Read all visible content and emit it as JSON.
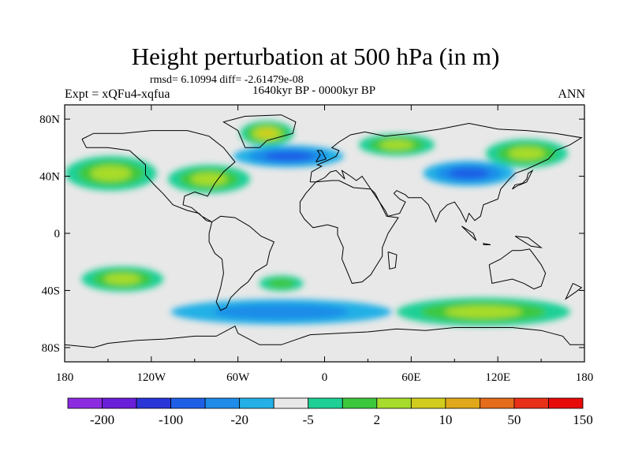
{
  "header": {
    "title": "Height perturbation at 500 hPa (in m)",
    "stats": "rmsd= 6.10994 diff= -2.61479e-08",
    "period": "1640kyr BP - 0000kyr BP",
    "experiment": "Expt = xQFu4-xqfua",
    "season": "ANN"
  },
  "map": {
    "lon_labels": [
      "180",
      "120W",
      "60W",
      "0",
      "60E",
      "120E",
      "180"
    ],
    "lat_labels": [
      "80N",
      "40N",
      "0",
      "40S",
      "80S"
    ],
    "background_color": "#e8e8e8",
    "coast_color": "#000000"
  },
  "colorbar": {
    "colors": [
      "#8c2be0",
      "#6a1fd8",
      "#2a35d8",
      "#1e5fe6",
      "#1e8ce8",
      "#24b0e6",
      "#e8e8e8",
      "#1ed096",
      "#3cc83c",
      "#a8dc2c",
      "#d2cc1e",
      "#e0a81a",
      "#e46c1a",
      "#e83018",
      "#e80a0a"
    ],
    "labels": [
      "-200",
      "-100",
      "-20",
      "-5",
      "2",
      "10",
      "50",
      "150"
    ]
  },
  "anomaly_fields": [
    {
      "region": "North Pacific",
      "lon": -148,
      "lat": 42,
      "sign": "positive",
      "level": 3
    },
    {
      "region": "North America",
      "lon": -80,
      "lat": 38,
      "sign": "positive",
      "level": 3
    },
    {
      "region": "Greenland",
      "lon": -40,
      "lat": 70,
      "sign": "positive",
      "level": 4
    },
    {
      "region": "Atlantic / Europe",
      "lon": -25,
      "lat": 54,
      "sign": "negative",
      "level": 3
    },
    {
      "region": "Eurasia north",
      "lon": 50,
      "lat": 62,
      "sign": "positive",
      "level": 3
    },
    {
      "region": "Central Asia",
      "lon": 100,
      "lat": 42,
      "sign": "negative",
      "level": 3
    },
    {
      "region": "Northeast Asia",
      "lon": 140,
      "lat": 56,
      "sign": "positive",
      "level": 3
    },
    {
      "region": "South Pacific",
      "lon": -140,
      "lat": -32,
      "sign": "positive",
      "level": 3
    },
    {
      "region": "South Atlantic",
      "lon": -30,
      "lat": -35,
      "sign": "positive",
      "level": 2
    },
    {
      "region": "Southern Ocean",
      "lon": -30,
      "lat": -55,
      "sign": "negative",
      "level": 2
    },
    {
      "region": "South Indian / Pacific",
      "lon": 110,
      "lat": -55,
      "sign": "positive",
      "level": 3
    }
  ]
}
